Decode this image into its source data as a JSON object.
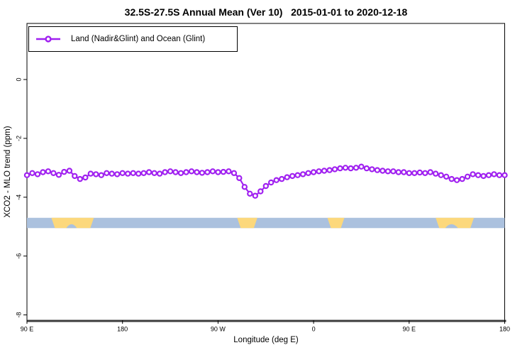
{
  "title": "32.5S-27.5S Annual Mean (Ver 10)   2015-01-01 to 2020-12-18",
  "legend": {
    "label": "Land (Nadir&Glint) and Ocean (Glint)",
    "marker_color": "#A020F0",
    "marker_shape": "open-circle-on-line"
  },
  "axes": {
    "x": {
      "label": "Longitude (deg E)"
    },
    "y": {
      "label": "XCO2 - MLO trend (ppm)"
    }
  },
  "colors": {
    "series_purple": "#A020F0",
    "ocean_blue": "#ABC1DE",
    "land_yellow": "#FCD87C",
    "axis_black": "#000000",
    "baseline_dark": "#3C3C3C",
    "background": "#FFFFFF"
  },
  "chart_data": {
    "type": "line",
    "title": "32.5S-27.5S Annual Mean (Ver 10)   2015-01-01 to 2020-12-18",
    "xlabel": "Longitude (deg E)",
    "ylabel": "XCO2 - MLO trend (ppm)",
    "xlim": [
      90,
      540
    ],
    "ylim": [
      -8.2,
      1.9
    ],
    "grid": false,
    "legend_position": "top-left-boxed",
    "x_tick_positions": [
      90,
      180,
      270,
      360,
      450,
      540
    ],
    "x_tick_labels": [
      "90 E",
      "180",
      "90 W",
      "0",
      "90 E",
      "180"
    ],
    "y_ticks": [
      0,
      -2,
      -4,
      -6,
      -8
    ],
    "series": [
      {
        "name": "Land (Nadir&Glint) and Ocean (Glint)",
        "color": "#A020F0",
        "marker": "open-circle",
        "x": [
          90,
          95,
          100,
          105,
          110,
          115,
          120,
          125,
          130,
          135,
          140,
          145,
          150,
          155,
          160,
          165,
          170,
          175,
          180,
          185,
          190,
          195,
          200,
          205,
          210,
          215,
          220,
          225,
          230,
          235,
          240,
          245,
          250,
          255,
          260,
          265,
          270,
          275,
          280,
          285,
          290,
          295,
          300,
          305,
          310,
          315,
          320,
          325,
          330,
          335,
          340,
          345,
          350,
          355,
          360,
          365,
          370,
          375,
          380,
          385,
          390,
          395,
          400,
          405,
          410,
          415,
          420,
          425,
          430,
          435,
          440,
          445,
          450,
          455,
          460,
          465,
          470,
          475,
          480,
          485,
          490,
          495,
          500,
          505,
          510,
          515,
          520,
          525,
          530,
          535,
          540
        ],
        "y": [
          -3.25,
          -3.18,
          -3.22,
          -3.15,
          -3.12,
          -3.18,
          -3.24,
          -3.14,
          -3.1,
          -3.28,
          -3.38,
          -3.33,
          -3.2,
          -3.22,
          -3.25,
          -3.18,
          -3.2,
          -3.22,
          -3.18,
          -3.2,
          -3.18,
          -3.2,
          -3.18,
          -3.15,
          -3.18,
          -3.2,
          -3.15,
          -3.12,
          -3.15,
          -3.18,
          -3.15,
          -3.12,
          -3.15,
          -3.17,
          -3.15,
          -3.12,
          -3.15,
          -3.14,
          -3.12,
          -3.18,
          -3.35,
          -3.65,
          -3.88,
          -3.95,
          -3.8,
          -3.62,
          -3.5,
          -3.42,
          -3.38,
          -3.32,
          -3.28,
          -3.25,
          -3.22,
          -3.18,
          -3.15,
          -3.12,
          -3.1,
          -3.08,
          -3.05,
          -3.02,
          -3.0,
          -3.02,
          -3.0,
          -2.96,
          -3.02,
          -3.05,
          -3.08,
          -3.1,
          -3.12,
          -3.12,
          -3.15,
          -3.15,
          -3.18,
          -3.18,
          -3.16,
          -3.18,
          -3.15,
          -3.2,
          -3.25,
          -3.3,
          -3.38,
          -3.42,
          -3.38,
          -3.3,
          -3.22,
          -3.25,
          -3.28,
          -3.25,
          -3.22,
          -3.25,
          -3.25
        ]
      }
    ],
    "surface_band": {
      "description": "land(yellow)/ocean(blue) indicator strip",
      "y_top": -4.7,
      "y_bottom": -5.05,
      "ocean_color": "#ABC1DE",
      "land_color": "#FCD87C",
      "land_segments_lon": [
        [
          113,
          153
        ],
        [
          288,
          307
        ],
        [
          373,
          389
        ],
        [
          475,
          511
        ]
      ],
      "ocean_notches_lon": [
        [
          127,
          137
        ],
        [
          484,
          496
        ]
      ]
    }
  }
}
